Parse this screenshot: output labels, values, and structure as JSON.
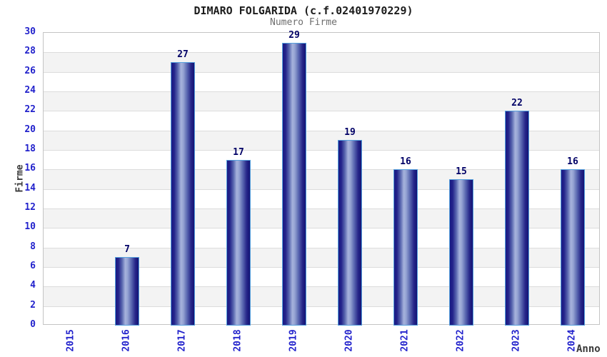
{
  "header": {
    "title": "DIMARO FOLGARIDA (c.f.02401970229)",
    "subtitle": "Numero Firme"
  },
  "chart_data": {
    "type": "bar",
    "title": "DIMARO FOLGARIDA (c.f.02401970229)",
    "subtitle": "Numero Firme",
    "xlabel": "Anno",
    "ylabel": "Firme",
    "categories": [
      "2015",
      "2016",
      "2017",
      "2018",
      "2019",
      "2020",
      "2021",
      "2022",
      "2023",
      "2024"
    ],
    "values": [
      0,
      7,
      27,
      17,
      29,
      19,
      16,
      15,
      22,
      16
    ],
    "bar_labels": [
      "",
      "7",
      "27",
      "17",
      "29",
      "19",
      "16",
      "15",
      "22",
      "16"
    ],
    "ylim": [
      0,
      30
    ],
    "ytick_step": 2,
    "grid": true,
    "band_shading": true,
    "legend": "none"
  },
  "colors": {
    "axis_text_blue": "#2222cc",
    "value_label_navy": "#000066",
    "bar_border_lightblue": "#55a0dd",
    "bar_dark_navy": "#1a1a84",
    "bar_highlight": "#a6b2dc",
    "band_gray": "#f3f3f3",
    "gridline_gray": "#dcdcdc",
    "plot_border_gray": "#c4c4c4",
    "title_color": "#1c1c1c",
    "subtitle_color": "#6e6e6e",
    "axis_title_color": "#3a3a3a"
  }
}
